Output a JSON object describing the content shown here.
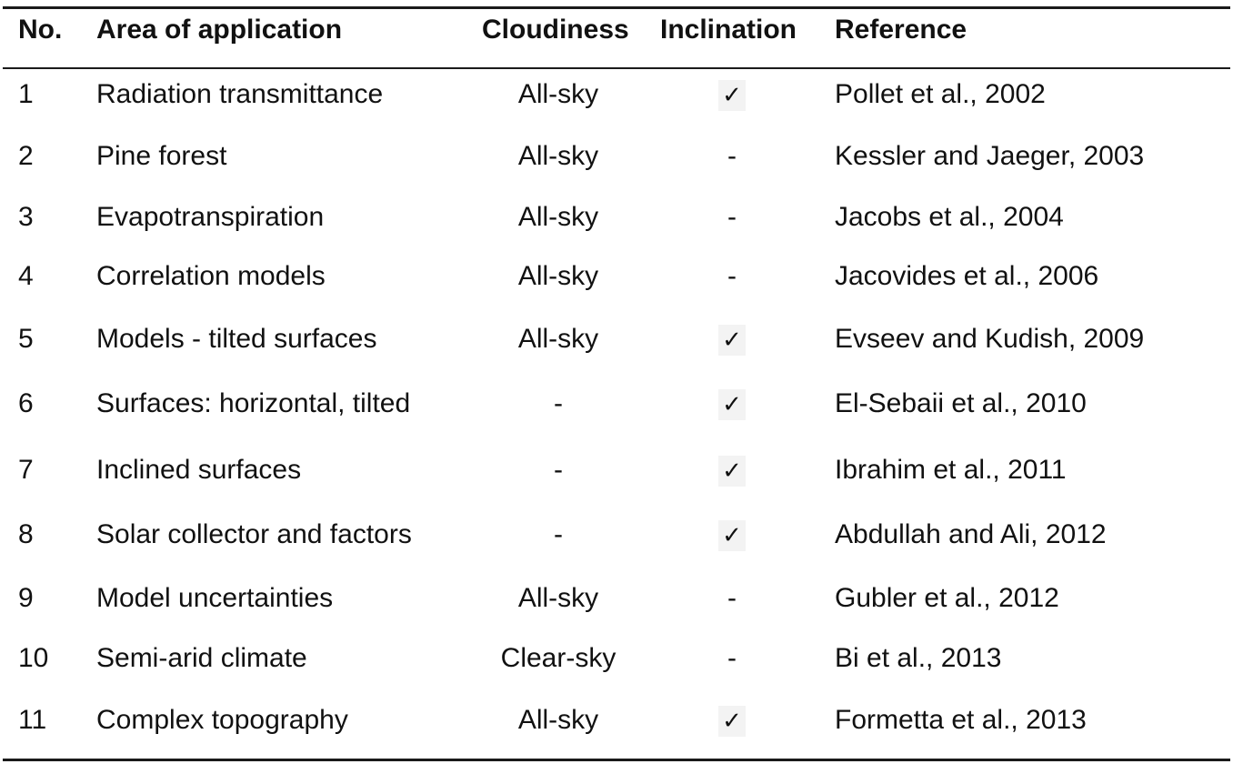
{
  "table": {
    "headers": {
      "no": "No.",
      "area": "Area of application",
      "cloudiness": "Cloudiness",
      "inclination": "Inclination",
      "reference": "Reference"
    },
    "rows": [
      {
        "no": "1",
        "area": "Radiation transmittance",
        "cloudiness": "All-sky",
        "inclination": "✓",
        "reference": "Pollet et al., 2002"
      },
      {
        "no": "2",
        "area": "Pine forest",
        "cloudiness": "All-sky",
        "inclination": "-",
        "reference": "Kessler and Jaeger, 2003"
      },
      {
        "no": "3",
        "area": "Evapotranspiration",
        "cloudiness": "All-sky",
        "inclination": "-",
        "reference": "Jacobs et al., 2004"
      },
      {
        "no": "4",
        "area": "Correlation models",
        "cloudiness": "All-sky",
        "inclination": "-",
        "reference": "Jacovides et al., 2006"
      },
      {
        "no": "5",
        "area": "Models - tilted surfaces",
        "cloudiness": "All-sky",
        "inclination": "✓",
        "reference": "Evseev and Kudish, 2009"
      },
      {
        "no": "6",
        "area": "Surfaces: horizontal, tilted",
        "cloudiness": "-",
        "inclination": "✓",
        "reference": "El-Sebaii et al., 2010"
      },
      {
        "no": "7",
        "area": "Inclined surfaces",
        "cloudiness": "-",
        "inclination": "✓",
        "reference": "Ibrahim et al., 2011"
      },
      {
        "no": "8",
        "area": "Solar collector and factors",
        "cloudiness": "-",
        "inclination": "✓",
        "reference": "Abdullah and Ali, 2012"
      },
      {
        "no": "9",
        "area": "Model uncertainties",
        "cloudiness": "All-sky",
        "inclination": "-",
        "reference": "Gubler et al., 2012"
      },
      {
        "no": "10",
        "area": "Semi-arid climate",
        "cloudiness": "Clear-sky",
        "inclination": "-",
        "reference": "Bi et al., 2013"
      },
      {
        "no": "11",
        "area": "Complex topography",
        "cloudiness": "All-sky",
        "inclination": "✓",
        "reference": "Formetta et al., 2013"
      }
    ]
  }
}
